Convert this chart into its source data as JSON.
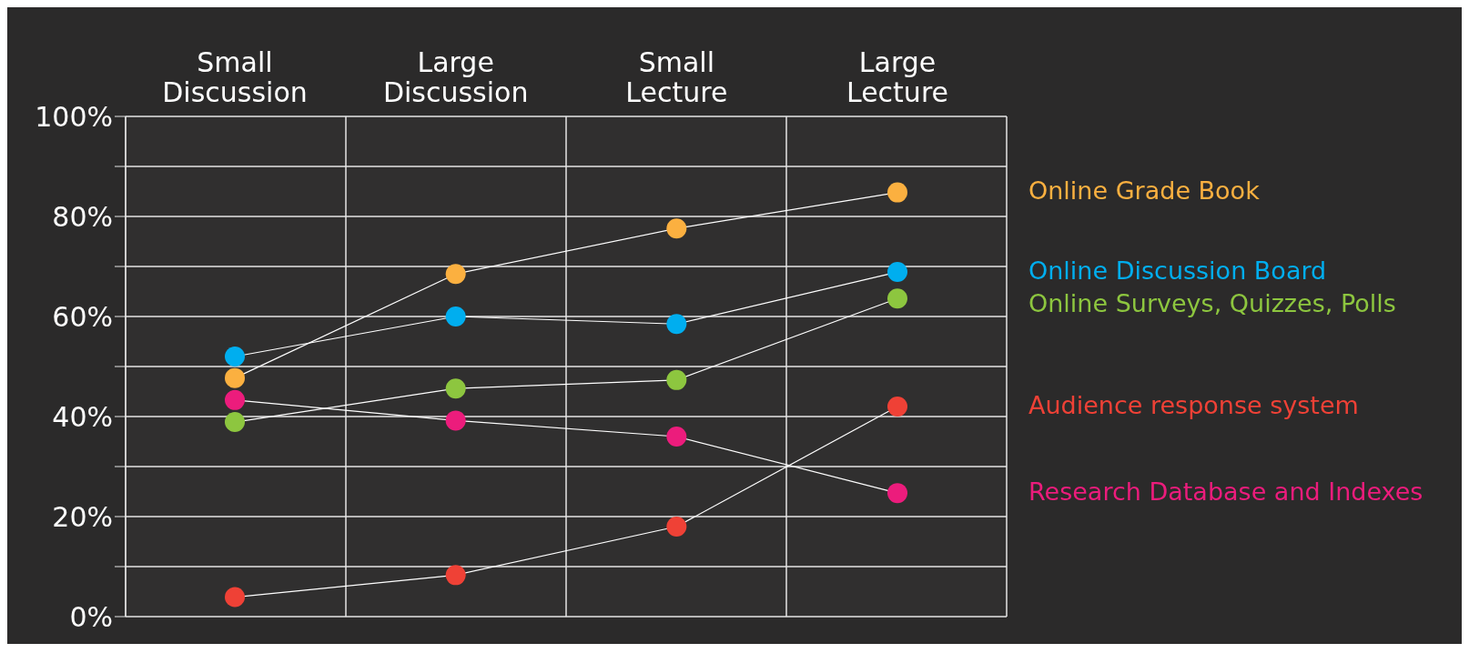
{
  "chart_data": {
    "type": "line",
    "categories": [
      "Small Discussion",
      "Large Discussion",
      "Small Lecture",
      "Large Lecture"
    ],
    "series": [
      {
        "name": "Online Grade Book",
        "color": "#fbb040",
        "values": [
          47.7,
          68.5,
          77.6,
          84.8
        ]
      },
      {
        "name": "Online Discussion Board",
        "color": "#00aeef",
        "values": [
          52,
          60,
          58.5,
          68.9
        ]
      },
      {
        "name": "Online Surveys, Quizzes, Polls",
        "color": "#8dc63f",
        "values": [
          38.9,
          45.6,
          47.3,
          63.6
        ]
      },
      {
        "name": "Audience response system",
        "color": "#ef4136",
        "values": [
          3.9,
          8.3,
          18,
          42
        ]
      },
      {
        "name": "Research Database and Indexes",
        "color": "#ec1c7c",
        "values": [
          43.3,
          39.2,
          36,
          24.7
        ]
      }
    ],
    "ylim": [
      0,
      100
    ],
    "yticks": [
      {
        "value": 0,
        "label": "0%"
      },
      {
        "value": 10,
        "label": null
      },
      {
        "value": 20,
        "label": "20%"
      },
      {
        "value": 30,
        "label": null
      },
      {
        "value": 40,
        "label": "40%"
      },
      {
        "value": 50,
        "label": null
      },
      {
        "value": 60,
        "label": "60%"
      },
      {
        "value": 70,
        "label": null
      },
      {
        "value": 80,
        "label": "80%"
      },
      {
        "value": 90,
        "label": null
      },
      {
        "value": 100,
        "label": "100%"
      }
    ],
    "grid": true,
    "legend": "right",
    "marker": "circle",
    "line_style": "solid"
  }
}
